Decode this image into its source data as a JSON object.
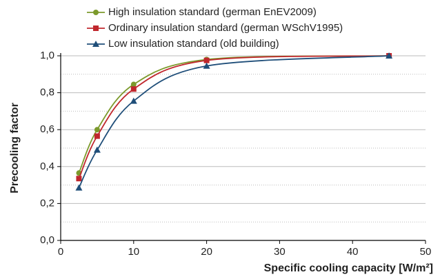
{
  "chart_data": {
    "type": "line",
    "x_label": "Specific cooling capacity [W/m²]",
    "y_label": "Precooling factor",
    "x": [
      2.5,
      5,
      10,
      20,
      45
    ],
    "series": [
      {
        "name": "High insulation standard (german EnEV2009)",
        "color": "#7c9a2c",
        "marker": "circle",
        "values": [
          0.365,
          0.6,
          0.845,
          0.98,
          1.0
        ]
      },
      {
        "name": "Ordinary insulation standard (german WSchV1995)",
        "color": "#c0272d",
        "marker": "square",
        "values": [
          0.335,
          0.565,
          0.82,
          0.975,
          1.0
        ]
      },
      {
        "name": "Low insulation standard (old building)",
        "color": "#1f4e79",
        "marker": "triangle",
        "values": [
          0.285,
          0.49,
          0.755,
          0.945,
          1.0
        ]
      }
    ],
    "xlim": [
      0,
      50
    ],
    "xticks": [
      0,
      10,
      20,
      30,
      40,
      50
    ],
    "ylim": [
      0,
      1
    ],
    "yticks": [
      {
        "value": 0,
        "label": "0,0"
      },
      {
        "value": 0.2,
        "label": "0,2"
      },
      {
        "value": 0.4,
        "label": "0,4"
      },
      {
        "value": 0.6,
        "label": "0,6"
      },
      {
        "value": 0.8,
        "label": "0,8"
      },
      {
        "value": 1.0,
        "label": "1,0"
      }
    ],
    "minor_yticks": [
      0.1,
      0.3,
      0.5,
      0.7,
      0.9
    ],
    "grid": true,
    "smooth": true,
    "legend": "top"
  }
}
